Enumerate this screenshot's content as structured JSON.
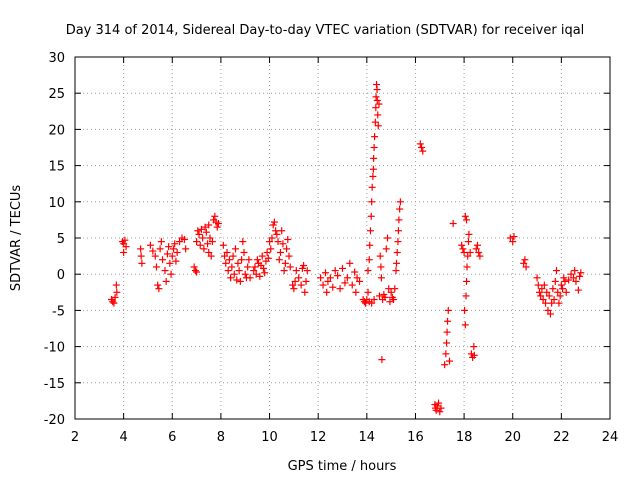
{
  "chart_data": {
    "type": "scatter",
    "title": "Day 314 of 2014, Sidereal Day-to-day VTEC variation (SDTVAR) for receiver iqal",
    "xlabel": "GPS time / hours",
    "ylabel": "SDTVAR / TECUs",
    "xlim": [
      2,
      24
    ],
    "ylim": [
      -20,
      30
    ],
    "xticks": [
      "2",
      "4",
      "6",
      "8",
      "10",
      "12",
      "14",
      "16",
      "18",
      "20",
      "22",
      "24"
    ],
    "yticks": [
      "30",
      "25",
      "20",
      "15",
      "10",
      "5",
      "0",
      "-5",
      "-10",
      "-15",
      "-20"
    ],
    "grid": true,
    "marker": "+",
    "color": "#ff0000",
    "series": [
      {
        "name": "SDTVAR",
        "points": [
          [
            3.5,
            -3.5
          ],
          [
            3.55,
            -3.8
          ],
          [
            3.6,
            -4.0
          ],
          [
            3.65,
            -3.2
          ],
          [
            3.7,
            -1.5
          ],
          [
            3.72,
            -2.5
          ],
          [
            3.95,
            4.5
          ],
          [
            4.0,
            4.2
          ],
          [
            4.05,
            4.7
          ],
          [
            4.1,
            3.8
          ],
          [
            4.0,
            3.0
          ],
          [
            4.7,
            3.5
          ],
          [
            4.72,
            2.5
          ],
          [
            4.75,
            1.5
          ],
          [
            5.1,
            4.0
          ],
          [
            5.2,
            3.2
          ],
          [
            5.3,
            2.5
          ],
          [
            5.35,
            1.0
          ],
          [
            5.4,
            -1.5
          ],
          [
            5.45,
            -2.0
          ],
          [
            5.5,
            3.5
          ],
          [
            5.55,
            4.5
          ],
          [
            5.6,
            2.0
          ],
          [
            5.7,
            0.5
          ],
          [
            5.75,
            -1.0
          ],
          [
            5.8,
            2.8
          ],
          [
            5.85,
            3.8
          ],
          [
            5.9,
            1.5
          ],
          [
            5.95,
            0.0
          ],
          [
            6.0,
            2.5
          ],
          [
            6.05,
            3.5
          ],
          [
            6.1,
            4.2
          ],
          [
            6.15,
            1.8
          ],
          [
            6.2,
            3.0
          ],
          [
            6.3,
            4.5
          ],
          [
            6.4,
            5.0
          ],
          [
            6.5,
            4.8
          ],
          [
            6.55,
            3.5
          ],
          [
            6.9,
            1.0
          ],
          [
            6.95,
            0.5
          ],
          [
            7.0,
            0.3
          ],
          [
            7.0,
            4.5
          ],
          [
            7.05,
            6.0
          ],
          [
            7.1,
            5.5
          ],
          [
            7.15,
            4.0
          ],
          [
            7.2,
            6.2
          ],
          [
            7.25,
            5.0
          ],
          [
            7.3,
            3.5
          ],
          [
            7.35,
            6.5
          ],
          [
            7.4,
            5.8
          ],
          [
            7.45,
            4.2
          ],
          [
            7.5,
            3.0
          ],
          [
            7.5,
            6.8
          ],
          [
            7.55,
            5.0
          ],
          [
            7.6,
            2.5
          ],
          [
            7.65,
            4.5
          ],
          [
            7.7,
            7.5
          ],
          [
            7.75,
            8.0
          ],
          [
            7.8,
            7.2
          ],
          [
            7.85,
            6.5
          ],
          [
            7.9,
            7.0
          ],
          [
            8.1,
            4.0
          ],
          [
            8.15,
            2.5
          ],
          [
            8.2,
            1.5
          ],
          [
            8.25,
            3.0
          ],
          [
            8.3,
            0.5
          ],
          [
            8.35,
            2.0
          ],
          [
            8.4,
            -0.5
          ],
          [
            8.45,
            1.0
          ],
          [
            8.5,
            2.5
          ],
          [
            8.55,
            0.0
          ],
          [
            8.6,
            3.5
          ],
          [
            8.65,
            -0.8
          ],
          [
            8.7,
            1.5
          ],
          [
            8.75,
            0.5
          ],
          [
            8.8,
            -1.0
          ],
          [
            8.85,
            2.0
          ],
          [
            8.9,
            4.5
          ],
          [
            8.95,
            3.0
          ],
          [
            9.0,
            0.0
          ],
          [
            9.05,
            -0.5
          ],
          [
            9.1,
            1.0
          ],
          [
            9.15,
            2.0
          ],
          [
            9.2,
            -0.5
          ],
          [
            9.35,
            0.5
          ],
          [
            9.4,
            1.0
          ],
          [
            9.45,
            0.0
          ],
          [
            9.5,
            2.0
          ],
          [
            9.55,
            1.5
          ],
          [
            9.6,
            -0.3
          ],
          [
            9.65,
            1.2
          ],
          [
            9.7,
            2.5
          ],
          [
            9.75,
            0.8
          ],
          [
            9.8,
            0.2
          ],
          [
            9.85,
            1.8
          ],
          [
            9.9,
            3.0
          ],
          [
            9.95,
            2.2
          ],
          [
            10.0,
            4.5
          ],
          [
            10.05,
            3.5
          ],
          [
            10.1,
            5.0
          ],
          [
            10.15,
            6.8
          ],
          [
            10.2,
            7.2
          ],
          [
            10.25,
            6.0
          ],
          [
            10.3,
            5.5
          ],
          [
            10.35,
            4.5
          ],
          [
            10.4,
            2.0
          ],
          [
            10.45,
            3.0
          ],
          [
            10.5,
            6.0
          ],
          [
            10.55,
            4.2
          ],
          [
            10.6,
            0.5
          ],
          [
            10.65,
            1.5
          ],
          [
            10.7,
            3.5
          ],
          [
            10.75,
            4.8
          ],
          [
            10.8,
            2.5
          ],
          [
            10.85,
            1.0
          ],
          [
            10.95,
            -1.5
          ],
          [
            11.0,
            -2.0
          ],
          [
            11.05,
            -1.0
          ],
          [
            11.1,
            0.5
          ],
          [
            11.2,
            -0.5
          ],
          [
            11.3,
            -1.5
          ],
          [
            11.35,
            0.8
          ],
          [
            11.4,
            1.2
          ],
          [
            11.45,
            -2.5
          ],
          [
            11.5,
            -1.0
          ],
          [
            11.55,
            0.5
          ],
          [
            12.1,
            -0.5
          ],
          [
            12.2,
            -1.5
          ],
          [
            12.3,
            0.2
          ],
          [
            12.35,
            -2.5
          ],
          [
            12.4,
            -1.0
          ],
          [
            12.5,
            -0.5
          ],
          [
            12.6,
            -1.8
          ],
          [
            12.7,
            0.5
          ],
          [
            12.8,
            -0.2
          ],
          [
            12.9,
            -2.0
          ],
          [
            13.0,
            0.8
          ],
          [
            13.1,
            -1.2
          ],
          [
            13.2,
            -0.5
          ],
          [
            13.3,
            1.5
          ],
          [
            13.4,
            -1.5
          ],
          [
            13.5,
            0.3
          ],
          [
            13.55,
            -2.5
          ],
          [
            13.6,
            -0.5
          ],
          [
            13.7,
            -1.0
          ],
          [
            13.85,
            -3.5
          ],
          [
            13.9,
            -3.8
          ],
          [
            13.95,
            -4.0
          ],
          [
            14.0,
            -3.5
          ],
          [
            14.05,
            -2.5
          ],
          [
            14.05,
            0.5
          ],
          [
            14.1,
            2.0
          ],
          [
            14.1,
            -3.8
          ],
          [
            14.12,
            4.0
          ],
          [
            14.15,
            6.0
          ],
          [
            14.18,
            8.0
          ],
          [
            14.2,
            10.0
          ],
          [
            14.2,
            -4.0
          ],
          [
            14.22,
            12.0
          ],
          [
            14.25,
            13.5
          ],
          [
            14.27,
            14.5
          ],
          [
            14.28,
            16.0
          ],
          [
            14.3,
            17.5
          ],
          [
            14.3,
            -3.5
          ],
          [
            14.32,
            19.0
          ],
          [
            14.35,
            21.0
          ],
          [
            14.37,
            23.0
          ],
          [
            14.38,
            24.5
          ],
          [
            14.4,
            26.2
          ],
          [
            14.42,
            25.5
          ],
          [
            14.43,
            24.0
          ],
          [
            14.45,
            22.0
          ],
          [
            14.47,
            20.5
          ],
          [
            14.5,
            23.5
          ],
          [
            14.52,
            -3.0
          ],
          [
            14.55,
            2.5
          ],
          [
            14.58,
            1.0
          ],
          [
            14.6,
            -0.5
          ],
          [
            14.62,
            -11.8
          ],
          [
            14.65,
            -3.5
          ],
          [
            14.7,
            -2.8
          ],
          [
            14.75,
            -3.2
          ],
          [
            14.8,
            3.5
          ],
          [
            14.85,
            5.0
          ],
          [
            14.9,
            -2.0
          ],
          [
            14.95,
            -3.8
          ],
          [
            15.0,
            -2.5
          ],
          [
            15.05,
            -3.2
          ],
          [
            15.1,
            -3.5
          ],
          [
            15.15,
            -2.0
          ],
          [
            15.2,
            0.5
          ],
          [
            15.22,
            1.5
          ],
          [
            15.25,
            3.0
          ],
          [
            15.28,
            4.5
          ],
          [
            15.3,
            6.0
          ],
          [
            15.32,
            7.5
          ],
          [
            15.35,
            9.0
          ],
          [
            15.38,
            10.0
          ],
          [
            16.2,
            18.0
          ],
          [
            16.25,
            17.5
          ],
          [
            16.3,
            17.0
          ],
          [
            16.8,
            -18.0
          ],
          [
            16.82,
            -18.5
          ],
          [
            16.85,
            -18.8
          ],
          [
            16.9,
            -18.2
          ],
          [
            16.95,
            -17.8
          ],
          [
            17.0,
            -19.0
          ],
          [
            17.05,
            -18.5
          ],
          [
            17.2,
            -12.5
          ],
          [
            17.25,
            -11.0
          ],
          [
            17.28,
            -9.5
          ],
          [
            17.3,
            -8.0
          ],
          [
            17.32,
            -6.5
          ],
          [
            17.35,
            -5.0
          ],
          [
            17.4,
            -12.0
          ],
          [
            17.55,
            7.0
          ],
          [
            17.9,
            4.0
          ],
          [
            17.95,
            3.5
          ],
          [
            18.0,
            3.0
          ],
          [
            18.02,
            -5.0
          ],
          [
            18.05,
            -7.0
          ],
          [
            18.08,
            -3.0
          ],
          [
            18.1,
            -1.0
          ],
          [
            18.12,
            1.0
          ],
          [
            18.15,
            2.5
          ],
          [
            18.18,
            4.5
          ],
          [
            18.2,
            5.5
          ],
          [
            18.05,
            8.0
          ],
          [
            18.1,
            7.5
          ],
          [
            18.25,
            3.0
          ],
          [
            18.3,
            -11.0
          ],
          [
            18.35,
            -11.5
          ],
          [
            18.4,
            -10.0
          ],
          [
            18.42,
            -11.2
          ],
          [
            18.5,
            3.5
          ],
          [
            18.55,
            4.0
          ],
          [
            18.6,
            3.0
          ],
          [
            18.65,
            2.5
          ],
          [
            19.9,
            5.0
          ],
          [
            20.0,
            4.5
          ],
          [
            20.05,
            5.2
          ],
          [
            20.45,
            1.5
          ],
          [
            20.5,
            2.0
          ],
          [
            20.55,
            1.0
          ],
          [
            21.0,
            -0.5
          ],
          [
            21.05,
            -1.5
          ],
          [
            21.1,
            -2.5
          ],
          [
            21.15,
            -3.0
          ],
          [
            21.2,
            -2.0
          ],
          [
            21.25,
            -3.5
          ],
          [
            21.3,
            -1.5
          ],
          [
            21.35,
            -4.0
          ],
          [
            21.4,
            -2.5
          ],
          [
            21.45,
            -5.0
          ],
          [
            21.5,
            -3.0
          ],
          [
            21.55,
            -5.5
          ],
          [
            21.6,
            -4.0
          ],
          [
            21.65,
            -2.0
          ],
          [
            21.7,
            -3.5
          ],
          [
            21.75,
            -1.0
          ],
          [
            21.8,
            0.5
          ],
          [
            21.85,
            -2.5
          ],
          [
            21.9,
            -4.0
          ],
          [
            21.95,
            -3.0
          ],
          [
            22.0,
            -1.5
          ],
          [
            22.05,
            -2.0
          ],
          [
            22.1,
            -0.5
          ],
          [
            22.15,
            -1.0
          ],
          [
            22.2,
            -2.5
          ],
          [
            22.3,
            -0.8
          ],
          [
            22.4,
            0.0
          ],
          [
            22.5,
            -0.5
          ],
          [
            22.55,
            0.5
          ],
          [
            22.6,
            -1.0
          ],
          [
            22.7,
            -2.2
          ],
          [
            22.75,
            -0.3
          ],
          [
            22.8,
            0.2
          ]
        ]
      }
    ]
  }
}
